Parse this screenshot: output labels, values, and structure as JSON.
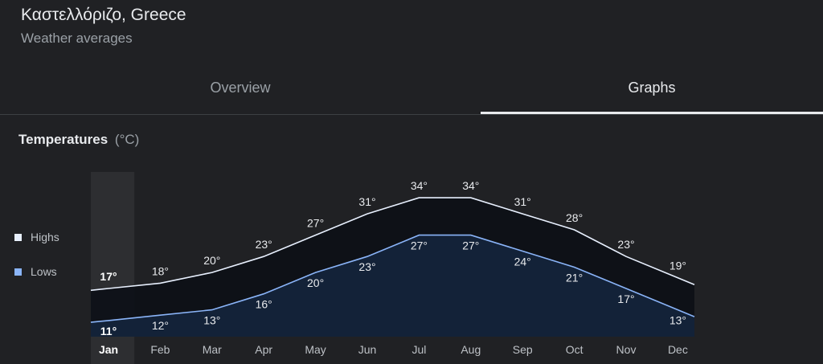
{
  "header": {
    "place": "Καστελλόριζο, Greece",
    "subtitle": "Weather averages"
  },
  "tabs": [
    {
      "label": "Overview",
      "selected": false
    },
    {
      "label": "Graphs",
      "selected": true
    }
  ],
  "section": {
    "title": "Temperatures",
    "unit": "(°C)"
  },
  "legend": {
    "highs": "Highs",
    "lows": "Lows"
  },
  "chart_data": {
    "type": "area",
    "categories": [
      "Jan",
      "Feb",
      "Mar",
      "Apr",
      "May",
      "Jun",
      "Jul",
      "Aug",
      "Sep",
      "Oct",
      "Nov",
      "Dec"
    ],
    "selected_category": "Jan",
    "series": [
      {
        "name": "Highs",
        "values": [
          17,
          18,
          20,
          23,
          27,
          31,
          34,
          34,
          31,
          28,
          23,
          19
        ],
        "color": "#e8f0fe"
      },
      {
        "name": "Lows",
        "values": [
          11,
          12,
          13,
          16,
          20,
          23,
          27,
          27,
          24,
          21,
          17,
          13
        ],
        "color": "#8ab4f8"
      }
    ],
    "value_suffix": "°",
    "colors": {
      "high_fill": "#0d1017",
      "low_fill": "#132238",
      "selection": "#2d2e31"
    }
  }
}
